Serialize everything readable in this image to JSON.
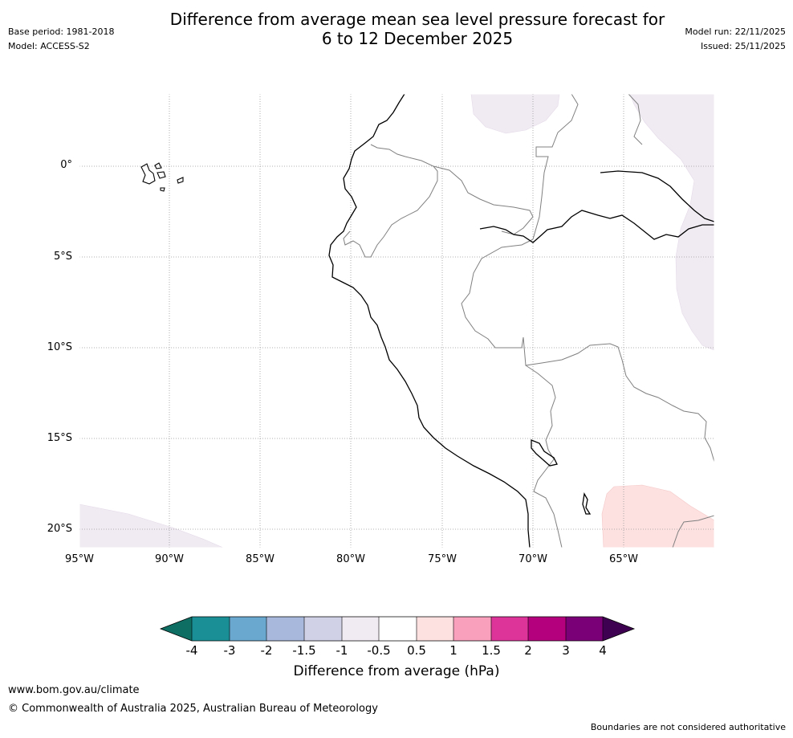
{
  "title_line1": "Difference from average mean sea level pressure forecast for",
  "title_line2": "6 to 12 December 2025",
  "base_period": "Base period: 1981-2018",
  "model": "Model: ACCESS-S2",
  "model_run": "Model run: 22/11/2025",
  "issued": "Issued: 25/11/2025",
  "lat_labels": [
    "0°",
    "5°S",
    "10°S",
    "15°S",
    "20°S"
  ],
  "lon_labels": [
    "95°W",
    "90°W",
    "85°W",
    "80°W",
    "75°W",
    "70°W",
    "65°W"
  ],
  "colorbar": {
    "ticks": [
      "-4",
      "-3",
      "-2",
      "-1.5",
      "-1",
      "-0.5",
      "0.5",
      "1",
      "1.5",
      "2",
      "3",
      "4"
    ],
    "colors": [
      "#0e6e64",
      "#1a9096",
      "#6aa8d0",
      "#a8b8dc",
      "#d0d0e6",
      "#f0ebf3",
      "#ffffff",
      "#fde0e0",
      "#f8a0bc",
      "#dc3498",
      "#b4007c",
      "#7a0078",
      "#3e0050"
    ],
    "title": "Difference from average (hPa)"
  },
  "map_colors": {
    "coast": "#000000",
    "border": "#808080",
    "neg_shade": "#f0ebf3",
    "pos_shade": "#fde0e0"
  },
  "footer_link": "www.bom.gov.au/climate",
  "footer_copy": "© Commonwealth of Australia 2025, Australian Bureau of Meteorology",
  "footer_note": "Boundaries are not considered authoritative"
}
